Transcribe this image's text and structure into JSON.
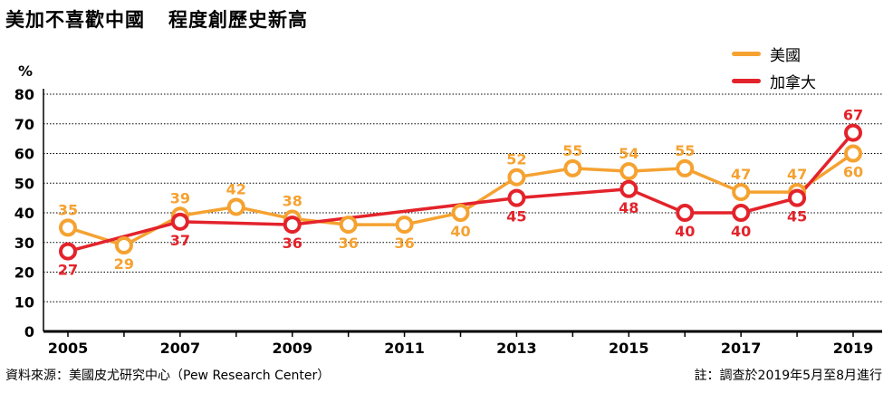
{
  "header": {
    "title": "美加不喜歡中國",
    "subtitle": "程度創歷史新高"
  },
  "footer": {
    "source": "資料來源：美國皮尤研究中心（Pew Research Center）",
    "note": "註：調查於2019年5月至8月進行"
  },
  "colors": {
    "usa": "#f5a231",
    "canada": "#e3232b",
    "axis": "#000000",
    "grid": "#000000"
  },
  "chart_data": {
    "type": "line",
    "title": "美加不喜歡中國　程度創歷史新高",
    "xlabel": "",
    "ylabel": "%",
    "ylim": [
      0,
      80
    ],
    "yticks": [
      0,
      10,
      20,
      30,
      40,
      50,
      60,
      70,
      80
    ],
    "xlim": [
      2005,
      2019
    ],
    "xticks": [
      2005,
      2007,
      2009,
      2011,
      2013,
      2015,
      2017,
      2019
    ],
    "grid": true,
    "legend_position": "top-right",
    "series": [
      {
        "name": "美國",
        "color": "#f5a231",
        "x": [
          2005,
          2006,
          2007,
          2008,
          2009,
          2010,
          2011,
          2012,
          2013,
          2014,
          2015,
          2016,
          2017,
          2018,
          2019
        ],
        "values": [
          35,
          29,
          39,
          42,
          38,
          36,
          36,
          40,
          52,
          55,
          54,
          55,
          47,
          47,
          60
        ]
      },
      {
        "name": "加拿大",
        "color": "#e3232b",
        "x": [
          2005,
          2007,
          2009,
          2013,
          2015,
          2016,
          2017,
          2018,
          2019
        ],
        "values": [
          27,
          37,
          36,
          45,
          48,
          40,
          40,
          45,
          67
        ]
      }
    ]
  }
}
